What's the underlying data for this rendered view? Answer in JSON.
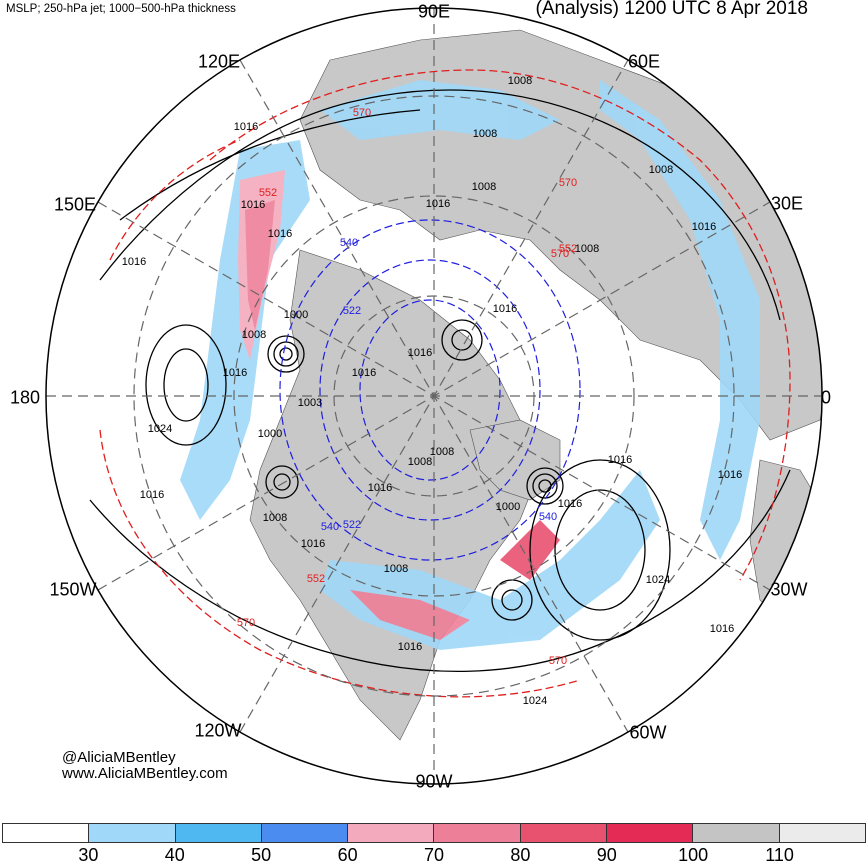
{
  "header": {
    "left_title": "MSLP; 250-hPa jet; 1000−500-hPa thickness",
    "right_title": "(Analysis) 1200 UTC 8 Apr 2018"
  },
  "credits": {
    "handle": "@AliciaMBentley",
    "website": "www.AliciaMBentley.com"
  },
  "longitude_labels": [
    "90E",
    "60E",
    "30E",
    "0",
    "30W",
    "60W",
    "90W",
    "120W",
    "150W",
    "180",
    "150E",
    "120E"
  ],
  "isobar_labels": [
    "1008",
    "1008",
    "1008",
    "1008",
    "1016",
    "1016",
    "1016",
    "1008",
    "1016",
    "1016",
    "1016",
    "1000",
    "1008",
    "1016",
    "1016",
    "1016",
    "1003",
    "1000",
    "1024",
    "1016",
    "1008",
    "1016",
    "1016",
    "1008",
    "1016",
    "1000",
    "1008",
    "1024",
    "1016",
    "1016",
    "1016",
    "1024",
    "1016",
    "1008",
    "1016"
  ],
  "thickness_labels": [
    "570",
    "570",
    "552",
    "570",
    "552",
    "540",
    "522",
    "540",
    "522",
    "552",
    "570",
    "570",
    "540"
  ],
  "colorbar": {
    "unit_hint": "",
    "ticks": [
      "30",
      "40",
      "50",
      "60",
      "70",
      "80",
      "90",
      "100",
      "110"
    ],
    "colors": [
      "#ffffff",
      "#9fd8f8",
      "#4fb8f0",
      "#4a8cf0",
      "#f3aabd",
      "#ee7f98",
      "#e8526f",
      "#e42b55",
      "#c4c4c4",
      "#ebebeb"
    ]
  },
  "palette": {
    "land": "#c8c8c8",
    "isobar": "#000000",
    "thickness_warm": "#e01e1e",
    "thickness_cold": "#1f1fe0"
  }
}
